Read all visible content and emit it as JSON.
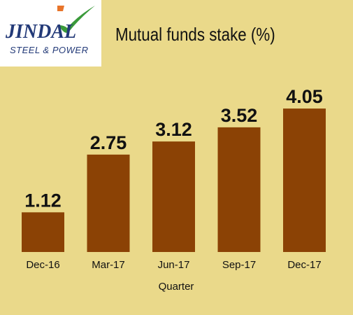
{
  "logo": {
    "brand": "JINDAL",
    "subtitle": "STEEL & POWER",
    "colors": {
      "brand": "#233a78",
      "check": "#3a9a3a",
      "flag": "#e8742a"
    }
  },
  "chart_data": {
    "type": "bar",
    "title": "Mutual funds stake (%)",
    "xlabel": "Quarter",
    "ylabel": "",
    "categories": [
      "Dec-16",
      "Mar-17",
      "Jun-17",
      "Sep-17",
      "Dec-17"
    ],
    "values": [
      1.12,
      2.75,
      3.12,
      3.52,
      4.05
    ],
    "value_labels": [
      "1.12",
      "2.75",
      "3.12",
      "3.52",
      "4.05"
    ],
    "ylim": [
      0,
      4.5
    ],
    "grid": false,
    "legend": "none",
    "colors": {
      "bar": "#8b4205",
      "background": "#ead98a"
    }
  }
}
